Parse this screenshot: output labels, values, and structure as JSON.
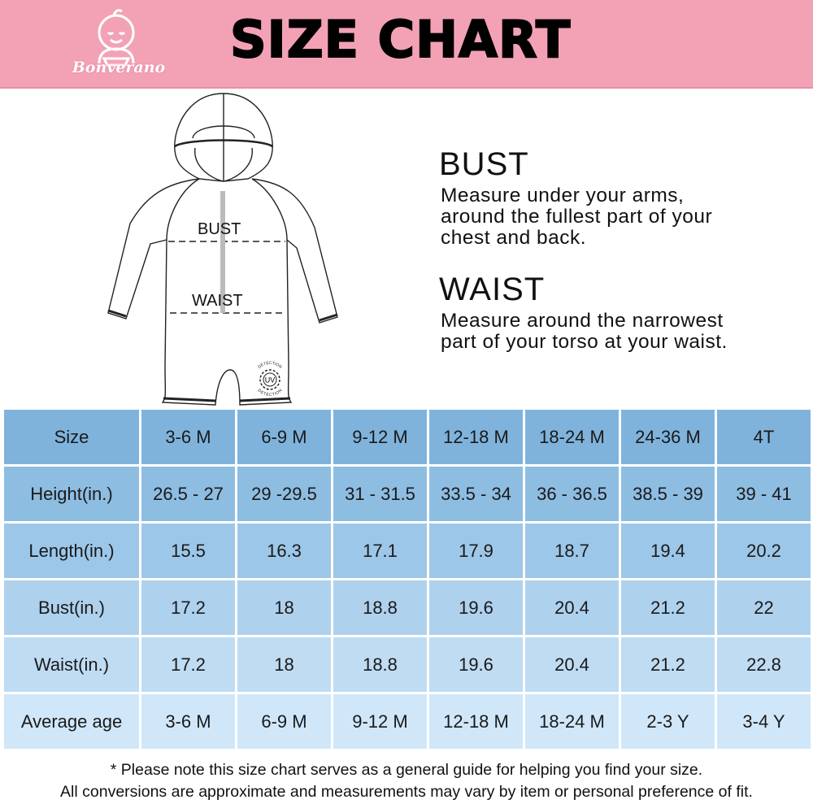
{
  "header": {
    "title": "SIZE CHART",
    "brand": "Bonverano",
    "background": "#f3a2b6"
  },
  "diagram": {
    "bust_label": "BUST",
    "waist_label": "WAIST",
    "uv_badge": {
      "center": "UV",
      "ring": "DETECTION"
    }
  },
  "instructions": [
    {
      "heading": "BUST",
      "lines": [
        "Measure under your arms,",
        "around the fullest part of your",
        "chest and back."
      ]
    },
    {
      "heading": "WAIST",
      "lines": [
        "Measure around the narrowest",
        "part of your torso at your waist."
      ]
    }
  ],
  "table": {
    "row_colors": [
      "#7fb3dc",
      "#8ebde2",
      "#9dc7e8",
      "#aed1ee",
      "#bfdcf3",
      "#d0e7f9"
    ],
    "rows": [
      {
        "label": "Size",
        "values": [
          "3-6 M",
          "6-9 M",
          "9-12 M",
          "12-18 M",
          "18-24 M",
          "24-36 M",
          "4T"
        ]
      },
      {
        "label": "Height(in.)",
        "values": [
          "26.5 - 27",
          "29 -29.5",
          "31 - 31.5",
          "33.5 - 34",
          "36 - 36.5",
          "38.5 - 39",
          "39 - 41"
        ]
      },
      {
        "label": "Length(in.)",
        "values": [
          "15.5",
          "16.3",
          "17.1",
          "17.9",
          "18.7",
          "19.4",
          "20.2"
        ]
      },
      {
        "label": "Bust(in.)",
        "values": [
          "17.2",
          "18",
          "18.8",
          "19.6",
          "20.4",
          "21.2",
          "22"
        ]
      },
      {
        "label": "Waist(in.)",
        "values": [
          "17.2",
          "18",
          "18.8",
          "19.6",
          "20.4",
          "21.2",
          "22.8"
        ]
      },
      {
        "label": "Average age",
        "values": [
          "3-6 M",
          "6-9 M",
          "9-12 M",
          "12-18 M",
          "18-24 M",
          "2-3 Y",
          "3-4 Y"
        ]
      }
    ]
  },
  "footnote": [
    "* Please note this size chart serves as a general guide for helping you find your size.",
    "All conversions are approximate and measurements may vary by item or personal preference of fit."
  ]
}
